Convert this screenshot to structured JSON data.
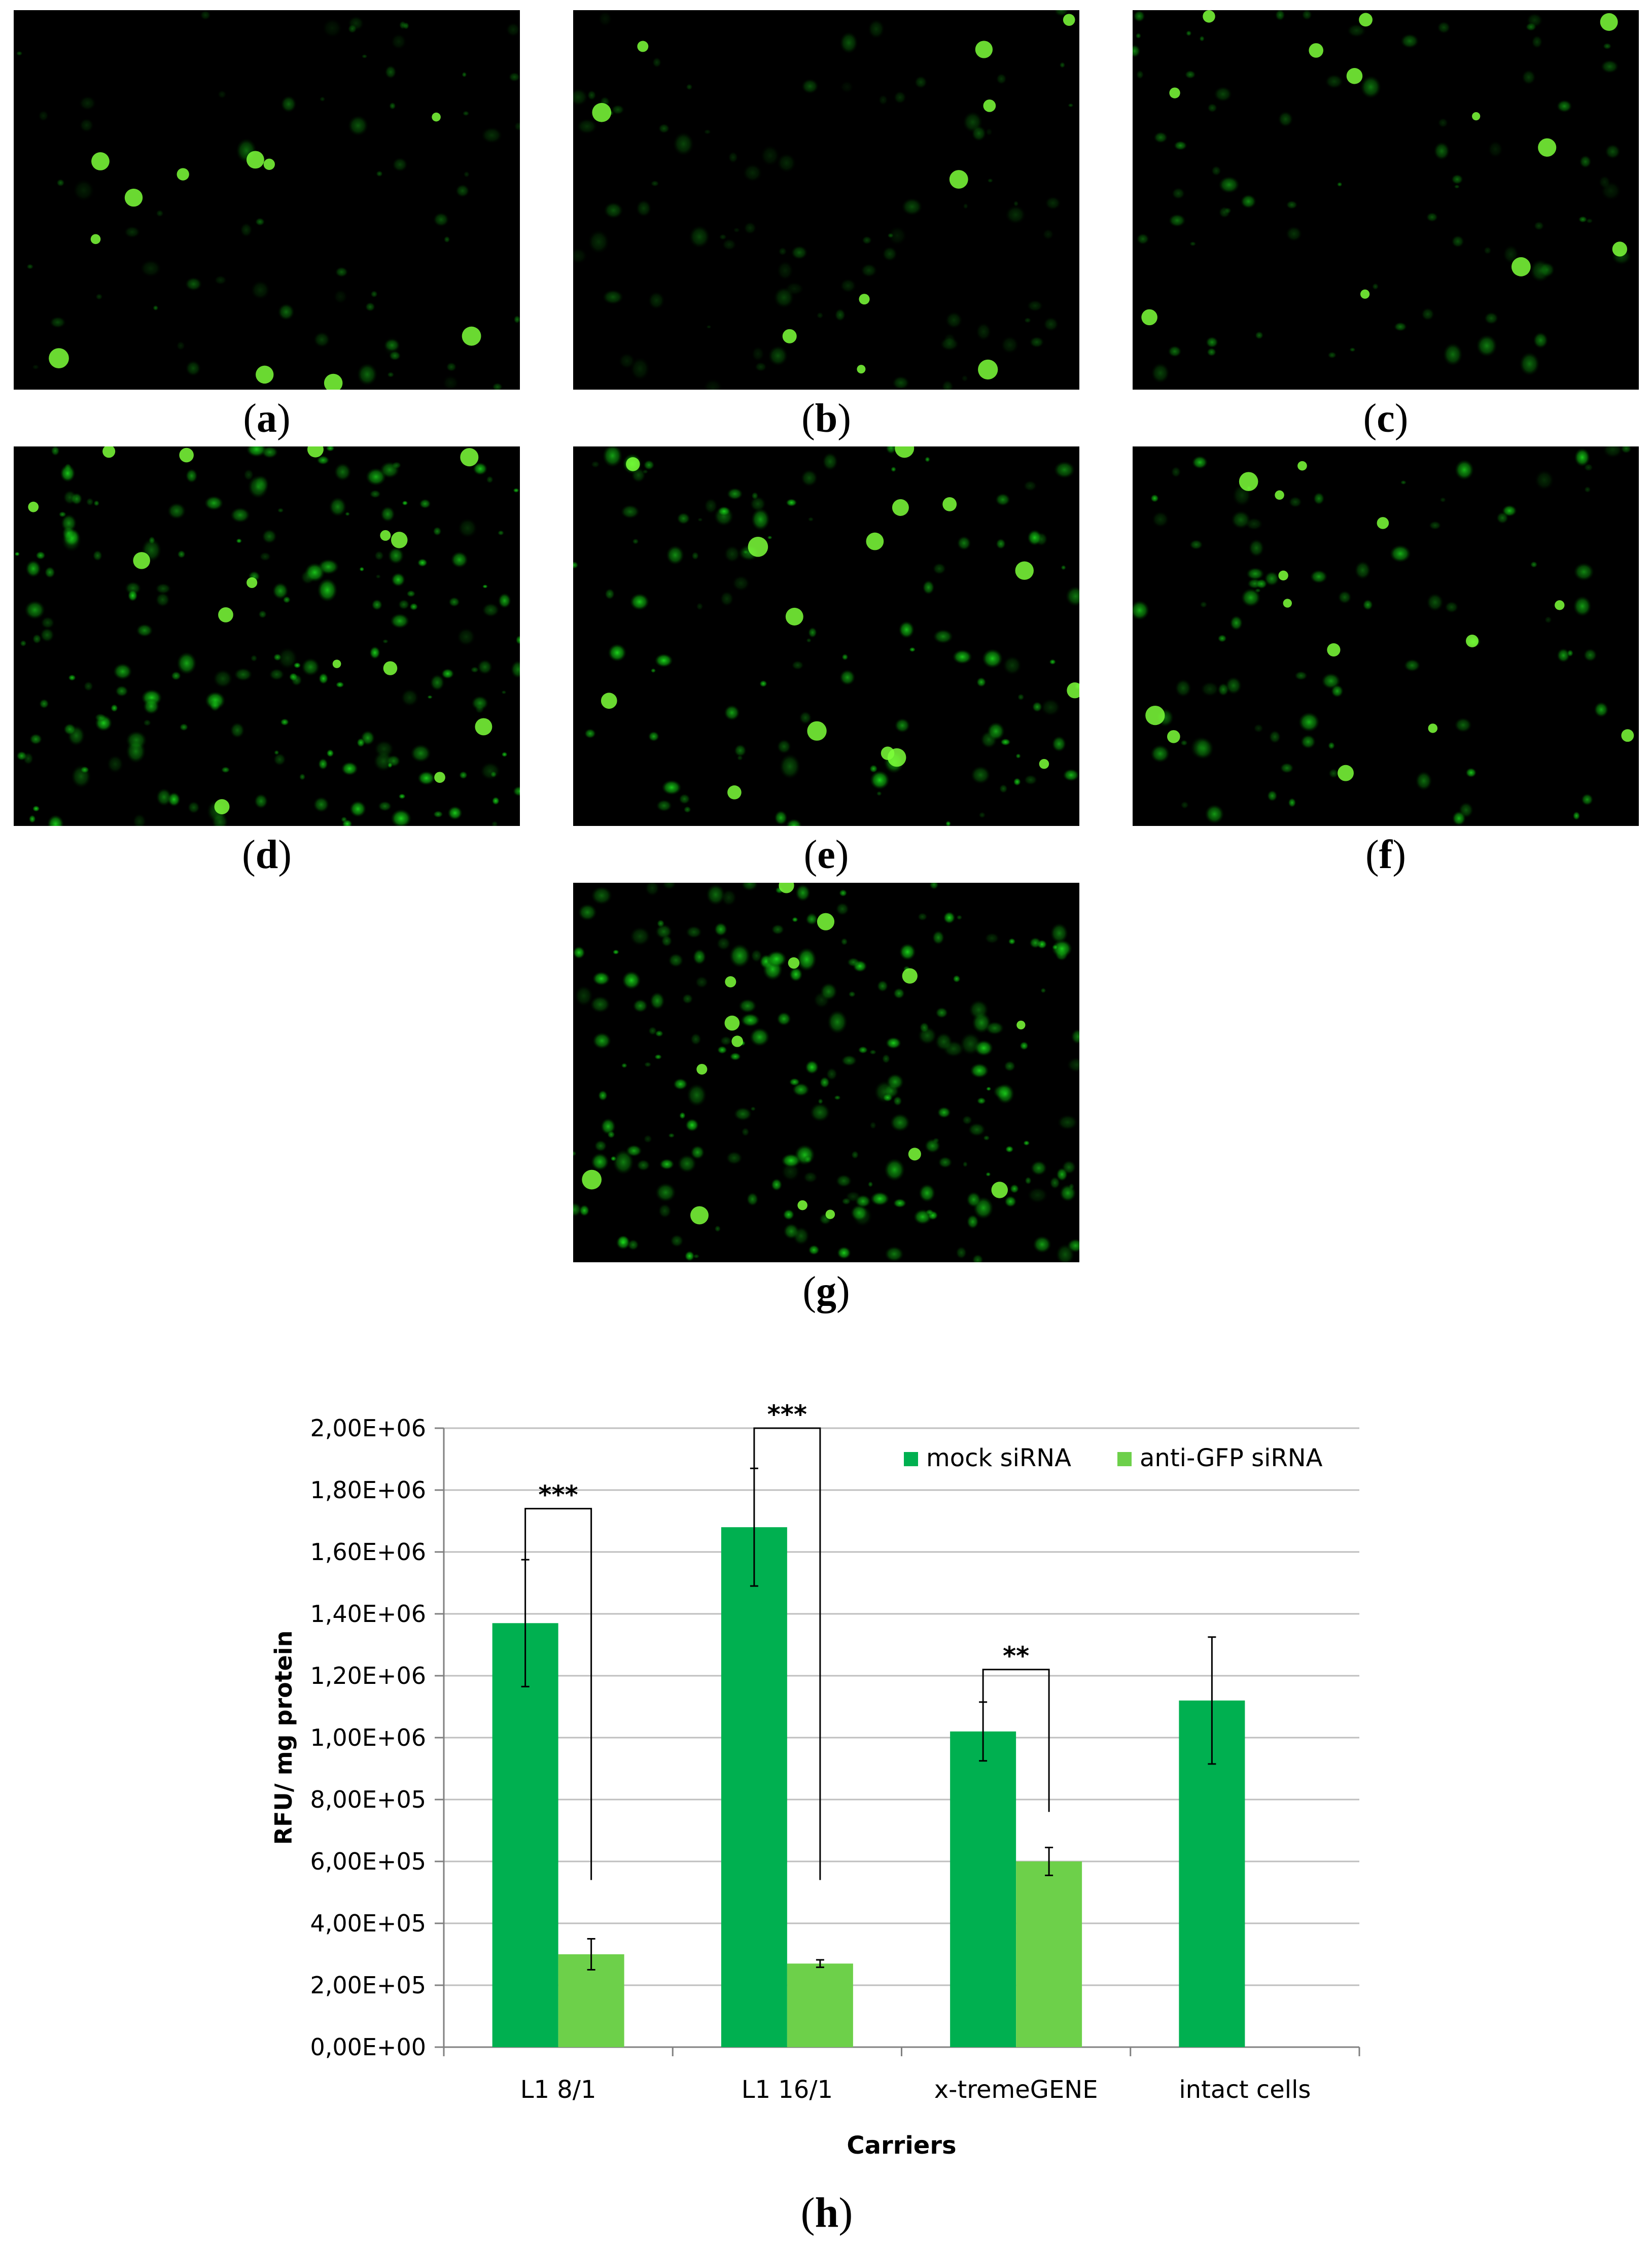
{
  "panels": [
    {
      "id": "a",
      "label": "a",
      "density": 0.35,
      "brightness": 0.45
    },
    {
      "id": "b",
      "label": "b",
      "density": 0.45,
      "brightness": 0.35
    },
    {
      "id": "c",
      "label": "c",
      "density": 0.4,
      "brightness": 0.55
    },
    {
      "id": "d",
      "label": "d",
      "density": 1.0,
      "brightness": 0.85
    },
    {
      "id": "e",
      "label": "e",
      "density": 0.55,
      "brightness": 0.85
    },
    {
      "id": "f",
      "label": "f",
      "density": 0.45,
      "brightness": 0.8
    },
    {
      "id": "g",
      "label": "g",
      "density": 1.2,
      "brightness": 0.85
    }
  ],
  "colors": {
    "mock": "#00b050",
    "anti": "#6dd04a",
    "grid": "#bfbfbf",
    "cell": "#22ff22"
  },
  "chart_label": "h",
  "chart_data": {
    "type": "bar",
    "categories": [
      "L1 8/1",
      "L1 16/1",
      "x-tremeGENE",
      "intact cells"
    ],
    "series": [
      {
        "name": "mock siRNA",
        "values": [
          1370000,
          1680000,
          1020000,
          1120000
        ],
        "errors": [
          205000,
          190000,
          95000,
          205000
        ]
      },
      {
        "name": "anti-GFP siRNA",
        "values": [
          300000,
          270000,
          600000,
          null
        ],
        "errors": [
          50000,
          12000,
          45000,
          null
        ]
      }
    ],
    "xlabel": "Carriers",
    "ylabel": "RFU/ mg protein",
    "ylim": [
      0,
      2000000
    ],
    "yticks": [
      "0,00E+00",
      "2,00E+05",
      "4,00E+05",
      "6,00E+05",
      "8,00E+05",
      "1,00E+06",
      "1,20E+06",
      "1,40E+06",
      "1,60E+06",
      "1,80E+06",
      "2,00E+06"
    ],
    "significance": [
      {
        "category": "L1 8/1",
        "label": "***",
        "bracket_top": 1740000,
        "right_drop": 540000
      },
      {
        "category": "L1 16/1",
        "label": "***",
        "bracket_top": 2000000,
        "right_drop": 540000
      },
      {
        "category": "x-tremeGENE",
        "label": "**",
        "bracket_top": 1220000,
        "right_drop": 760000
      }
    ],
    "legend_position": "top-right",
    "grid": true
  }
}
